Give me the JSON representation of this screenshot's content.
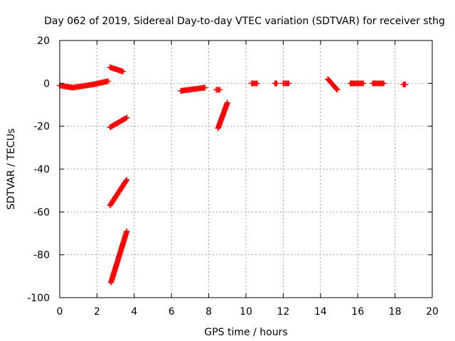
{
  "chart_data": {
    "type": "scatter",
    "title": "Day 062 of 2019, Sidereal Day-to-day VTEC variation (SDTVAR) for receiver sthg",
    "xlabel": "GPS time / hours",
    "ylabel": "SDTVAR / TECUs",
    "xlim": [
      0,
      20
    ],
    "ylim": [
      -100,
      20
    ],
    "xticks": [
      "0",
      "2",
      "4",
      "6",
      "8",
      "10",
      "12",
      "14",
      "16",
      "18",
      "20"
    ],
    "yticks": [
      "-100",
      "-80",
      "-60",
      "-40",
      "-20",
      "0",
      "20"
    ],
    "grid": true,
    "marker": "+",
    "color": "#ff0000",
    "segments": [
      {
        "x0": 0.0,
        "x1": 0.7,
        "y0": -1.0,
        "y1": -2.0
      },
      {
        "x0": 0.7,
        "x1": 1.8,
        "y0": -2.0,
        "y1": -0.5
      },
      {
        "x0": 1.8,
        "x1": 2.6,
        "y0": -0.5,
        "y1": 1.0
      },
      {
        "x0": 2.7,
        "x1": 3.4,
        "y0": 7.5,
        "y1": 5.5
      },
      {
        "x0": 2.7,
        "x1": 3.6,
        "y0": -20.5,
        "y1": -16.0
      },
      {
        "x0": 2.7,
        "x1": 3.6,
        "y0": -57.0,
        "y1": -45.0
      },
      {
        "x0": 2.75,
        "x1": 3.6,
        "y0": -93.0,
        "y1": -69.0
      },
      {
        "x0": 6.5,
        "x1": 7.8,
        "y0": -3.5,
        "y1": -2.0
      },
      {
        "x0": 8.4,
        "x1": 8.6,
        "y0": -3.0,
        "y1": -3.0
      },
      {
        "x0": 8.5,
        "x1": 9.0,
        "y0": -21.0,
        "y1": -9.0
      },
      {
        "x0": 10.3,
        "x1": 10.6,
        "y0": 0.0,
        "y1": 0.0
      },
      {
        "x0": 11.55,
        "x1": 11.65,
        "y0": 0.0,
        "y1": 0.0
      },
      {
        "x0": 12.0,
        "x1": 12.3,
        "y0": 0.0,
        "y1": 0.0
      },
      {
        "x0": 14.4,
        "x1": 14.9,
        "y0": 2.0,
        "y1": -3.0
      },
      {
        "x0": 15.6,
        "x1": 16.3,
        "y0": 0.0,
        "y1": 0.0
      },
      {
        "x0": 16.8,
        "x1": 17.4,
        "y0": 0.0,
        "y1": 0.0
      },
      {
        "x0": 18.45,
        "x1": 18.55,
        "y0": -0.5,
        "y1": -0.5
      }
    ]
  }
}
